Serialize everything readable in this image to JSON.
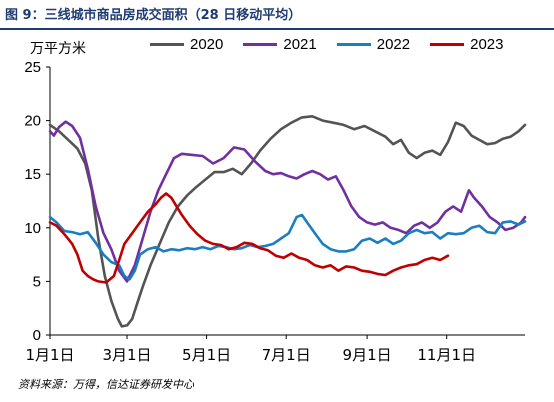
{
  "title": "图 9：三线城市商品房成交面积（28 日移动平均）",
  "source": "资料来源：万得，信达证券研发中心",
  "colors": {
    "2020": "#545454",
    "2021": "#7030a0",
    "2022": "#1b7ec2",
    "2023": "#c00000",
    "title": "#1f3b73"
  },
  "chart_data": {
    "type": "line",
    "title": "图 9：三线城市商品房成交面积（28 日移动平均）",
    "ylabel": "万平方米",
    "xlabel": "",
    "ylim": [
      0,
      25
    ],
    "yticks": [
      0,
      5,
      10,
      15,
      20,
      25
    ],
    "xlim": [
      1,
      365
    ],
    "xticks": [
      {
        "day": 1,
        "label": "1月1日"
      },
      {
        "day": 60,
        "label": "3月1日"
      },
      {
        "day": 121,
        "label": "5月1日"
      },
      {
        "day": 182,
        "label": "7月1日"
      },
      {
        "day": 244,
        "label": "9月1日"
      },
      {
        "day": 305,
        "label": "11月1日"
      }
    ],
    "grid": false,
    "legend_position": "top",
    "series": [
      {
        "name": "2020",
        "points": [
          [
            1,
            19.6
          ],
          [
            8,
            19.0
          ],
          [
            15,
            18.2
          ],
          [
            22,
            17.4
          ],
          [
            28,
            16.0
          ],
          [
            33,
            13.5
          ],
          [
            38,
            9.0
          ],
          [
            43,
            5.5
          ],
          [
            48,
            3.2
          ],
          [
            53,
            1.5
          ],
          [
            56,
            0.8
          ],
          [
            60,
            0.9
          ],
          [
            64,
            1.5
          ],
          [
            68,
            3.0
          ],
          [
            72,
            4.5
          ],
          [
            78,
            6.5
          ],
          [
            85,
            8.5
          ],
          [
            92,
            10.5
          ],
          [
            99,
            12.0
          ],
          [
            106,
            13.0
          ],
          [
            113,
            13.8
          ],
          [
            120,
            14.5
          ],
          [
            127,
            15.2
          ],
          [
            134,
            15.2
          ],
          [
            141,
            15.5
          ],
          [
            148,
            15.0
          ],
          [
            155,
            16.0
          ],
          [
            162,
            17.2
          ],
          [
            170,
            18.3
          ],
          [
            178,
            19.2
          ],
          [
            186,
            19.8
          ],
          [
            194,
            20.3
          ],
          [
            202,
            20.4
          ],
          [
            210,
            20.0
          ],
          [
            218,
            19.8
          ],
          [
            226,
            19.6
          ],
          [
            234,
            19.2
          ],
          [
            242,
            19.5
          ],
          [
            250,
            19.0
          ],
          [
            258,
            18.5
          ],
          [
            264,
            17.8
          ],
          [
            270,
            18.2
          ],
          [
            276,
            17.0
          ],
          [
            282,
            16.5
          ],
          [
            288,
            17.0
          ],
          [
            294,
            17.2
          ],
          [
            300,
            16.8
          ],
          [
            306,
            18.0
          ],
          [
            312,
            19.8
          ],
          [
            318,
            19.5
          ],
          [
            324,
            18.6
          ],
          [
            330,
            18.2
          ],
          [
            336,
            17.8
          ],
          [
            342,
            17.9
          ],
          [
            348,
            18.3
          ],
          [
            354,
            18.5
          ],
          [
            360,
            19.0
          ],
          [
            365,
            19.6
          ]
        ]
      },
      {
        "name": "2021",
        "points": [
          [
            1,
            19.0
          ],
          [
            4,
            18.6
          ],
          [
            8,
            19.4
          ],
          [
            13,
            19.9
          ],
          [
            18,
            19.5
          ],
          [
            24,
            18.4
          ],
          [
            30,
            15.5
          ],
          [
            36,
            12.0
          ],
          [
            42,
            9.5
          ],
          [
            48,
            8.0
          ],
          [
            54,
            6.0
          ],
          [
            60,
            5.0
          ],
          [
            66,
            6.5
          ],
          [
            72,
            9.0
          ],
          [
            78,
            11.5
          ],
          [
            84,
            13.5
          ],
          [
            90,
            15.0
          ],
          [
            96,
            16.5
          ],
          [
            102,
            16.9
          ],
          [
            110,
            16.8
          ],
          [
            118,
            16.7
          ],
          [
            126,
            16.0
          ],
          [
            134,
            16.5
          ],
          [
            142,
            17.5
          ],
          [
            150,
            17.3
          ],
          [
            158,
            16.2
          ],
          [
            166,
            15.3
          ],
          [
            172,
            15.0
          ],
          [
            178,
            15.1
          ],
          [
            184,
            14.8
          ],
          [
            190,
            14.6
          ],
          [
            196,
            15.0
          ],
          [
            202,
            15.3
          ],
          [
            208,
            15.0
          ],
          [
            214,
            14.5
          ],
          [
            220,
            14.8
          ],
          [
            226,
            13.5
          ],
          [
            232,
            12.0
          ],
          [
            238,
            11.0
          ],
          [
            244,
            10.5
          ],
          [
            250,
            10.3
          ],
          [
            256,
            10.5
          ],
          [
            262,
            10.0
          ],
          [
            268,
            9.8
          ],
          [
            274,
            9.5
          ],
          [
            280,
            10.2
          ],
          [
            286,
            10.5
          ],
          [
            292,
            10.0
          ],
          [
            298,
            10.5
          ],
          [
            304,
            11.5
          ],
          [
            310,
            12.0
          ],
          [
            316,
            11.5
          ],
          [
            322,
            13.5
          ],
          [
            326,
            12.8
          ],
          [
            332,
            12.0
          ],
          [
            338,
            11.0
          ],
          [
            344,
            10.5
          ],
          [
            350,
            9.8
          ],
          [
            356,
            10.0
          ],
          [
            362,
            10.5
          ],
          [
            365,
            11.0
          ]
        ]
      },
      {
        "name": "2022",
        "points": [
          [
            1,
            11.0
          ],
          [
            6,
            10.5
          ],
          [
            12,
            9.7
          ],
          [
            18,
            9.6
          ],
          [
            24,
            9.4
          ],
          [
            30,
            9.6
          ],
          [
            36,
            8.6
          ],
          [
            42,
            7.5
          ],
          [
            48,
            6.8
          ],
          [
            54,
            6.5
          ],
          [
            58,
            5.5
          ],
          [
            62,
            5.2
          ],
          [
            66,
            6.0
          ],
          [
            70,
            7.5
          ],
          [
            76,
            8.0
          ],
          [
            82,
            8.2
          ],
          [
            88,
            7.8
          ],
          [
            94,
            8.0
          ],
          [
            100,
            7.9
          ],
          [
            106,
            8.1
          ],
          [
            112,
            8.0
          ],
          [
            118,
            8.2
          ],
          [
            124,
            8.0
          ],
          [
            130,
            8.3
          ],
          [
            136,
            8.2
          ],
          [
            142,
            8.0
          ],
          [
            148,
            8.1
          ],
          [
            154,
            8.4
          ],
          [
            160,
            8.2
          ],
          [
            166,
            8.3
          ],
          [
            172,
            8.5
          ],
          [
            178,
            9.0
          ],
          [
            184,
            9.5
          ],
          [
            190,
            11.0
          ],
          [
            194,
            11.2
          ],
          [
            198,
            10.5
          ],
          [
            204,
            9.5
          ],
          [
            210,
            8.5
          ],
          [
            216,
            8.0
          ],
          [
            222,
            7.8
          ],
          [
            228,
            7.8
          ],
          [
            234,
            8.0
          ],
          [
            240,
            8.8
          ],
          [
            246,
            9.0
          ],
          [
            252,
            8.6
          ],
          [
            258,
            9.0
          ],
          [
            264,
            8.5
          ],
          [
            270,
            8.8
          ],
          [
            276,
            9.5
          ],
          [
            282,
            9.8
          ],
          [
            288,
            9.5
          ],
          [
            294,
            9.6
          ],
          [
            300,
            9.0
          ],
          [
            306,
            9.5
          ],
          [
            312,
            9.4
          ],
          [
            318,
            9.5
          ],
          [
            324,
            10.0
          ],
          [
            330,
            10.2
          ],
          [
            336,
            9.6
          ],
          [
            342,
            9.5
          ],
          [
            348,
            10.5
          ],
          [
            354,
            10.6
          ],
          [
            360,
            10.3
          ],
          [
            365,
            10.6
          ]
        ]
      },
      {
        "name": "2023",
        "points": [
          [
            1,
            10.5
          ],
          [
            6,
            10.2
          ],
          [
            12,
            9.4
          ],
          [
            18,
            8.5
          ],
          [
            22,
            7.5
          ],
          [
            26,
            6.0
          ],
          [
            30,
            5.5
          ],
          [
            34,
            5.2
          ],
          [
            38,
            5.0
          ],
          [
            44,
            4.9
          ],
          [
            50,
            5.5
          ],
          [
            54,
            7.0
          ],
          [
            58,
            8.5
          ],
          [
            64,
            9.5
          ],
          [
            70,
            10.5
          ],
          [
            76,
            11.5
          ],
          [
            82,
            12.2
          ],
          [
            86,
            12.8
          ],
          [
            90,
            13.2
          ],
          [
            94,
            12.8
          ],
          [
            98,
            12.0
          ],
          [
            102,
            11.2
          ],
          [
            108,
            10.2
          ],
          [
            114,
            9.4
          ],
          [
            120,
            8.8
          ],
          [
            126,
            8.5
          ],
          [
            132,
            8.4
          ],
          [
            138,
            8.0
          ],
          [
            144,
            8.2
          ],
          [
            150,
            8.6
          ],
          [
            156,
            8.5
          ],
          [
            162,
            8.1
          ],
          [
            168,
            7.9
          ],
          [
            174,
            7.4
          ],
          [
            180,
            7.2
          ],
          [
            186,
            7.6
          ],
          [
            192,
            7.2
          ],
          [
            198,
            7.0
          ],
          [
            204,
            6.5
          ],
          [
            210,
            6.3
          ],
          [
            216,
            6.5
          ],
          [
            222,
            6.0
          ],
          [
            228,
            6.4
          ],
          [
            234,
            6.3
          ],
          [
            240,
            6.0
          ],
          [
            246,
            5.9
          ],
          [
            252,
            5.7
          ],
          [
            258,
            5.6
          ],
          [
            264,
            6.0
          ],
          [
            270,
            6.3
          ],
          [
            276,
            6.5
          ],
          [
            282,
            6.6
          ],
          [
            288,
            7.0
          ],
          [
            294,
            7.2
          ],
          [
            300,
            7.0
          ],
          [
            306,
            7.4
          ]
        ]
      }
    ]
  }
}
